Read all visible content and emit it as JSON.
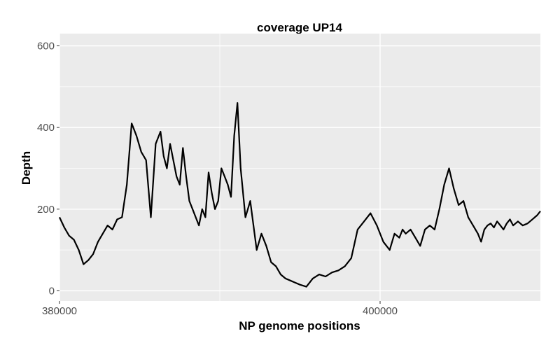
{
  "chart_data": {
    "type": "line",
    "title": "coverage UP14",
    "xlabel": "NP genome positions",
    "ylabel": "Depth",
    "xlim": [
      380000,
      410000
    ],
    "ylim": [
      -25,
      630
    ],
    "x_ticks": [
      380000,
      400000
    ],
    "x_tick_labels": [
      "380000",
      "400000"
    ],
    "y_ticks": [
      0,
      200,
      400,
      600
    ],
    "y_tick_labels": [
      "0",
      "200",
      "400",
      "600"
    ],
    "grid": true,
    "legend": "none",
    "background_color": "#ebebeb",
    "grid_color": "#ffffff",
    "line_color": "#000000",
    "series": [
      {
        "x": [
          380000,
          380300,
          380600,
          380900,
          381200,
          381500,
          381800,
          382100,
          382400,
          382700,
          383000,
          383300,
          383600,
          383900,
          384200,
          384500,
          384800,
          385100,
          385400,
          385700,
          386000,
          386300,
          386500,
          386700,
          386900,
          387100,
          387300,
          387500,
          387700,
          387900,
          388100,
          388300,
          388500,
          388700,
          388900,
          389100,
          389300,
          389500,
          389700,
          389900,
          390100,
          390300,
          390500,
          390700,
          390900,
          391100,
          391300,
          391600,
          391900,
          392100,
          392300,
          392600,
          392900,
          393200,
          393500,
          393800,
          394100,
          394400,
          394700,
          395000,
          395400,
          395800,
          396200,
          396600,
          397000,
          397400,
          397800,
          398200,
          398600,
          399000,
          399400,
          399800,
          400200,
          400600,
          400900,
          401200,
          401400,
          401600,
          401900,
          402200,
          402500,
          402800,
          403100,
          403400,
          403700,
          404000,
          404300,
          404600,
          404900,
          405200,
          405500,
          405800,
          406100,
          406300,
          406500,
          406700,
          406900,
          407100,
          407300,
          407500,
          407700,
          407900,
          408100,
          408300,
          408600,
          408900,
          409200,
          409500,
          409800,
          410000
        ],
        "y": [
          180,
          155,
          135,
          125,
          100,
          65,
          75,
          90,
          120,
          140,
          160,
          150,
          175,
          180,
          260,
          410,
          380,
          340,
          320,
          180,
          360,
          390,
          330,
          300,
          360,
          320,
          280,
          260,
          350,
          280,
          220,
          200,
          180,
          160,
          200,
          180,
          290,
          240,
          200,
          220,
          300,
          280,
          260,
          230,
          380,
          460,
          300,
          180,
          220,
          160,
          100,
          140,
          110,
          70,
          60,
          40,
          30,
          25,
          20,
          15,
          10,
          30,
          40,
          35,
          45,
          50,
          60,
          80,
          150,
          170,
          190,
          160,
          120,
          100,
          140,
          130,
          150,
          140,
          150,
          130,
          110,
          150,
          160,
          150,
          200,
          260,
          300,
          250,
          210,
          220,
          180,
          160,
          140,
          120,
          150,
          160,
          165,
          155,
          170,
          160,
          150,
          165,
          175,
          160,
          170,
          160,
          165,
          175,
          185,
          195
        ]
      }
    ]
  }
}
